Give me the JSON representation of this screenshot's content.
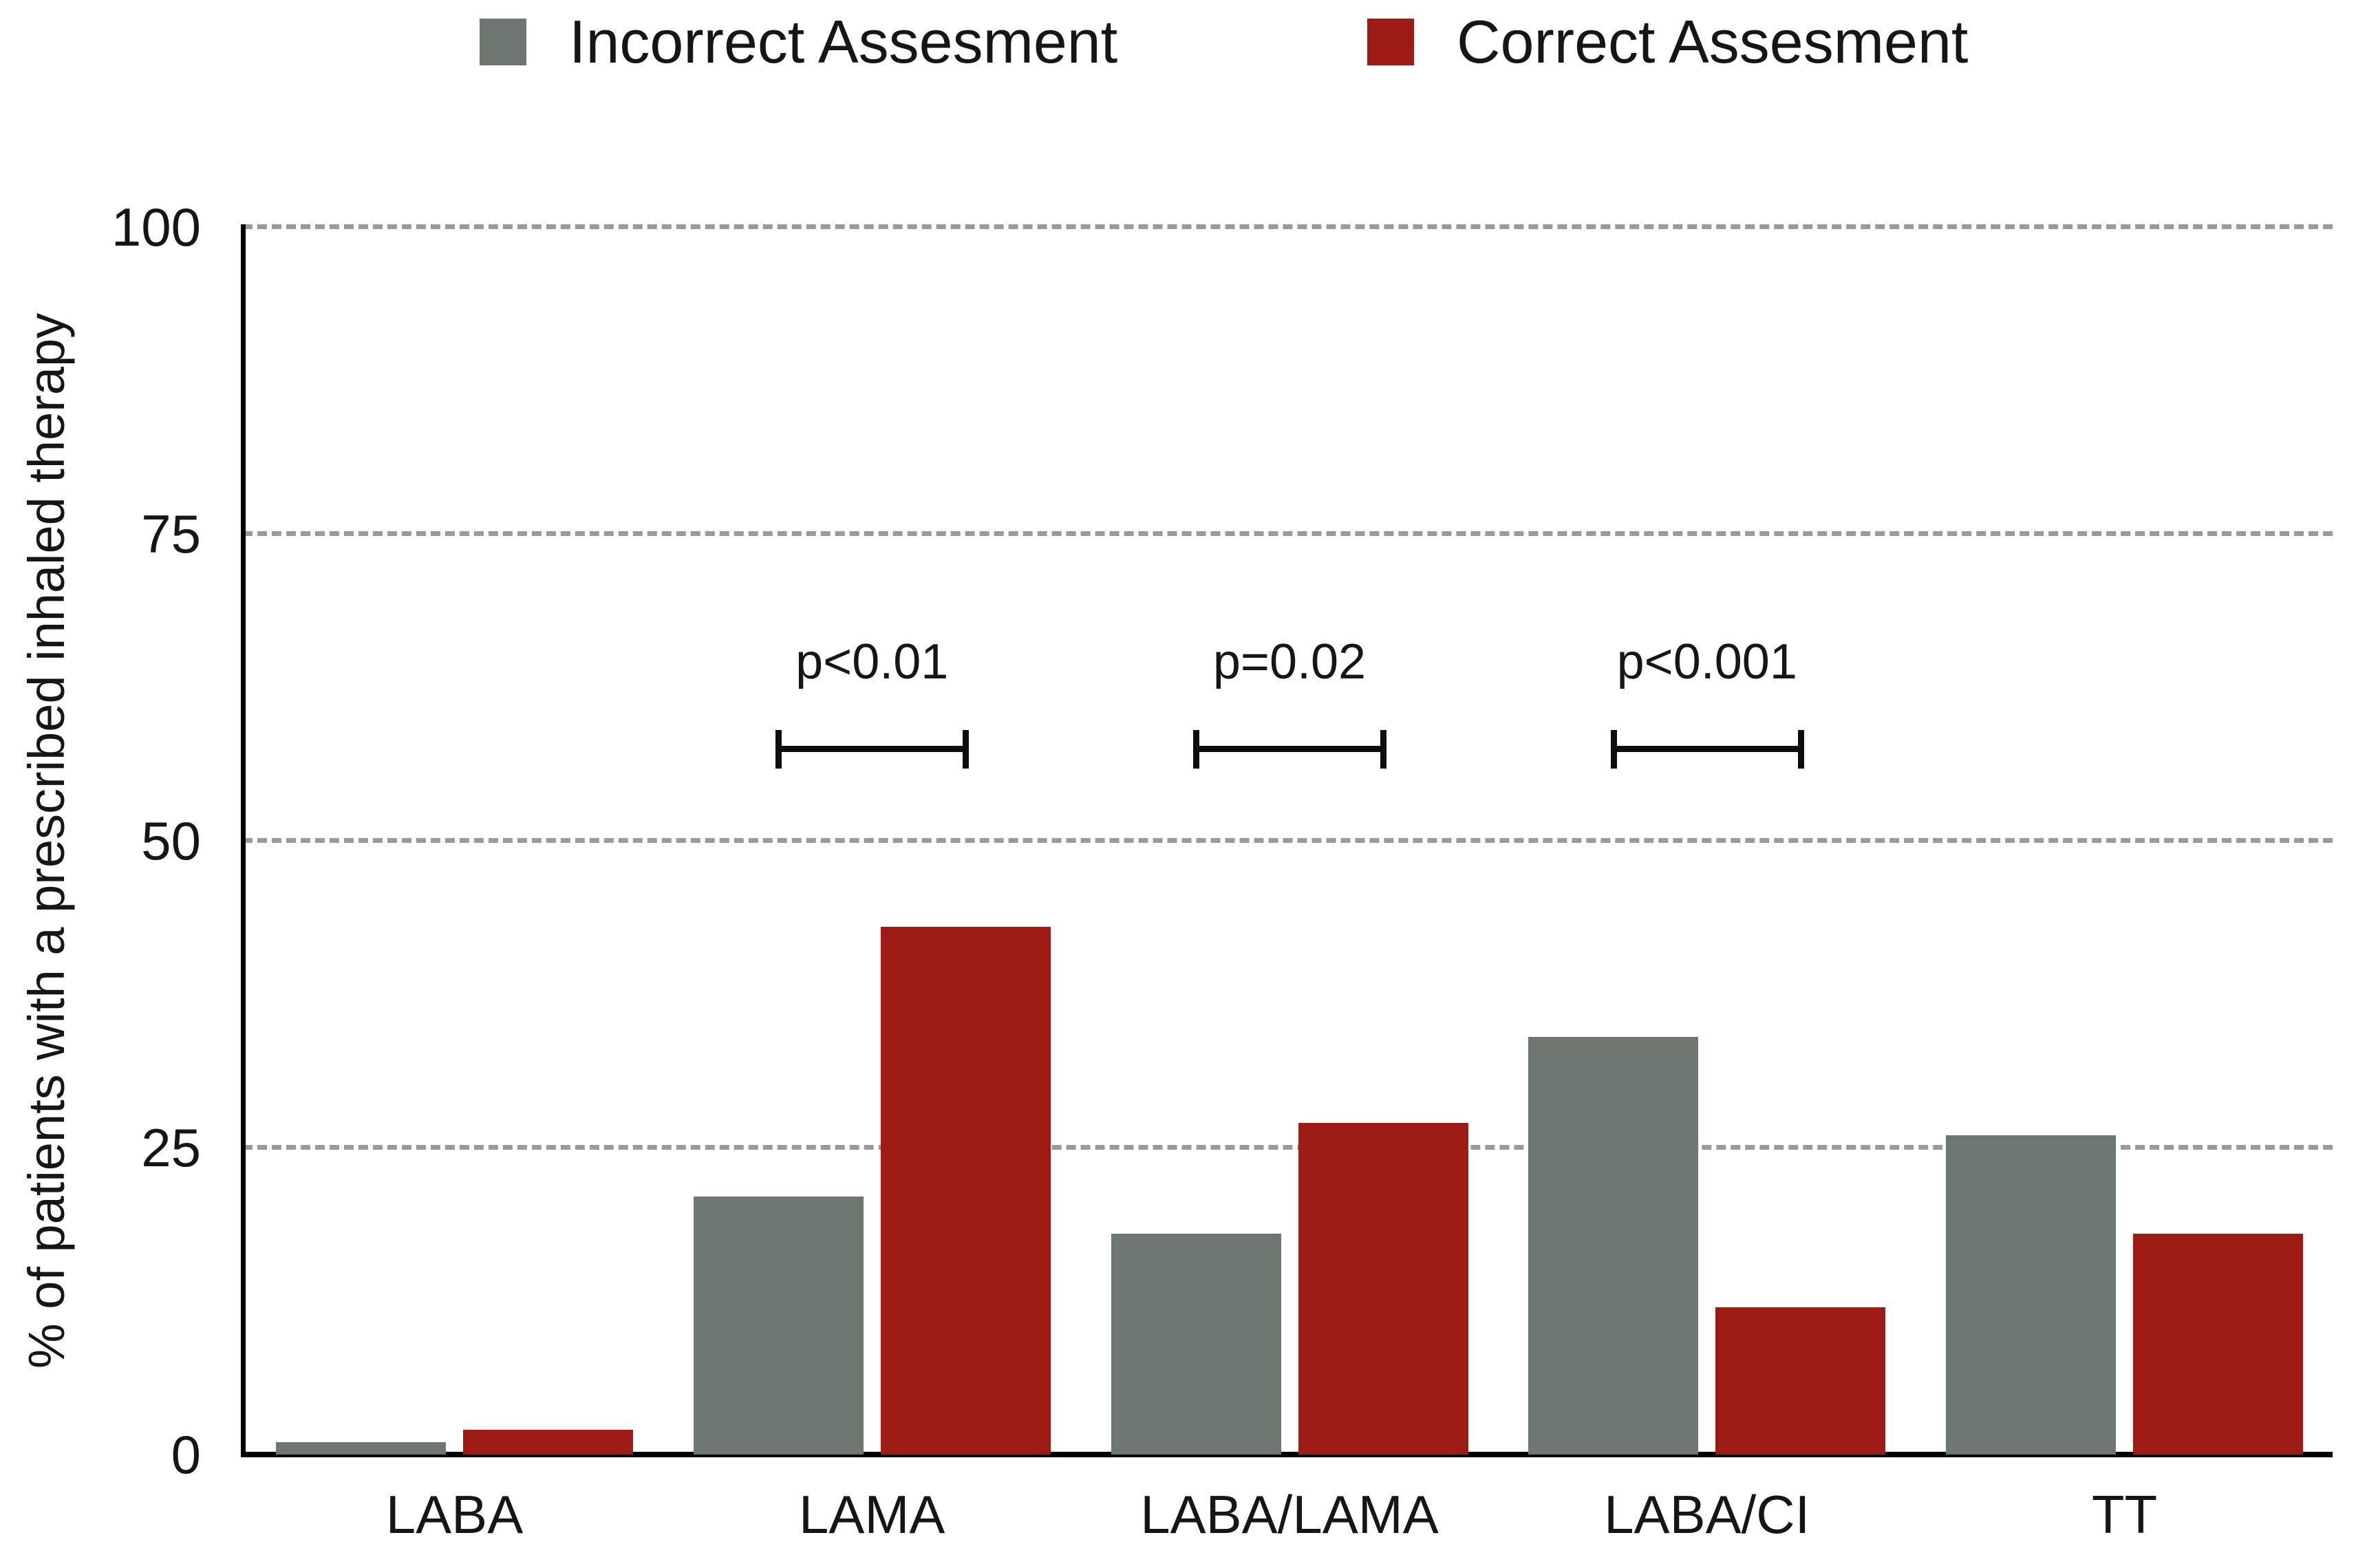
{
  "legend": {
    "incorrect_label": "Incorrect Assesment",
    "correct_label": "Correct Assesment"
  },
  "chart_data": {
    "type": "bar",
    "title": "",
    "categories": [
      "LABA",
      "LAMA",
      "LABA/LAMA",
      "LABA/CI",
      "TT"
    ],
    "series": [
      {
        "name": "Incorrect Assesment",
        "color": "#6d7671",
        "values": [
          1,
          21,
          18,
          34,
          26
        ]
      },
      {
        "name": "Correct Assesment",
        "color": "#9d1a15",
        "values": [
          2,
          43,
          27,
          12,
          18
        ]
      }
    ],
    "xlabel": "",
    "ylabel": "% of patients with a prescribed inhaled therapy",
    "ylim": [
      0,
      100
    ],
    "yticks": [
      0,
      25,
      50,
      75,
      100
    ],
    "grid": "horizontal-dashed",
    "gridline_color": "#9a9a9a",
    "axis_color": "#000000",
    "legend_position": "top",
    "annotations": [
      {
        "label": "p<0.01",
        "group": "LAMA"
      },
      {
        "label": "p=0.02",
        "group": "LABA/LAMA"
      },
      {
        "label": "p<0.001",
        "group": "LABA/CI"
      }
    ]
  }
}
